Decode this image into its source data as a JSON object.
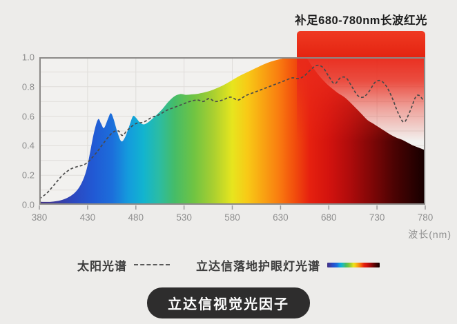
{
  "chart": {
    "title": "补足680-780nm长波红光",
    "xlabel": "波长(nm)"
  },
  "legend": {
    "solar_label": "太阳光谱",
    "lamp_label": "立达信落地护眼灯光谱"
  },
  "footer": {
    "badge_label": "立达信视觉光因子"
  },
  "colors": {
    "page_bg": "#edecea",
    "plot_bg": "#f2f1ef",
    "grid": "#dfddda",
    "border": "#8b8987",
    "tick": "#9a9a9a",
    "dashed_line": "#4a4a4a",
    "banner_red": "#e9291a",
    "badge_bg": "#2e2d2d"
  },
  "chart_data": {
    "type": "area",
    "title": "补足680-780nm长波红光",
    "xlabel": "波长(nm)",
    "ylabel": "",
    "xlim": [
      380,
      780
    ],
    "ylim": [
      0,
      1.0
    ],
    "x_ticks": [
      380,
      430,
      480,
      530,
      580,
      630,
      680,
      730,
      780
    ],
    "y_ticks": [
      0.0,
      0.2,
      0.4,
      0.6,
      0.8,
      1.0
    ],
    "y_tick_labels": [
      "0.0",
      "0.2",
      "0.4",
      "0.6",
      "0.8",
      "1.0"
    ],
    "grid": {
      "h_step": 0.1,
      "v_at_x_ticks": true
    },
    "legend_position": "bottom",
    "highlight": {
      "label": "补足680-780nm长波红光",
      "x_start": 647,
      "x_end": 780,
      "color": "#e9291a",
      "fade_end_value": 0.43
    },
    "series": [
      {
        "name": "立达信落地护眼灯光谱",
        "style": "area",
        "fill": "spectrum-gradient",
        "points": [
          [
            380,
            0.02
          ],
          [
            392,
            0.02
          ],
          [
            402,
            0.03
          ],
          [
            410,
            0.05
          ],
          [
            418,
            0.09
          ],
          [
            424,
            0.15
          ],
          [
            429,
            0.24
          ],
          [
            433,
            0.37
          ],
          [
            437,
            0.5
          ],
          [
            441,
            0.58
          ],
          [
            444,
            0.55
          ],
          [
            447,
            0.52
          ],
          [
            451,
            0.58
          ],
          [
            454,
            0.62
          ],
          [
            457,
            0.58
          ],
          [
            461,
            0.49
          ],
          [
            465,
            0.43
          ],
          [
            469,
            0.46
          ],
          [
            473,
            0.53
          ],
          [
            477,
            0.6
          ],
          [
            480,
            0.59
          ],
          [
            484,
            0.56
          ],
          [
            488,
            0.545
          ],
          [
            493,
            0.56
          ],
          [
            500,
            0.6
          ],
          [
            507,
            0.645
          ],
          [
            514,
            0.7
          ],
          [
            520,
            0.735
          ],
          [
            526,
            0.75
          ],
          [
            532,
            0.745
          ],
          [
            538,
            0.748
          ],
          [
            544,
            0.752
          ],
          [
            550,
            0.76
          ],
          [
            557,
            0.772
          ],
          [
            564,
            0.79
          ],
          [
            572,
            0.815
          ],
          [
            580,
            0.845
          ],
          [
            588,
            0.875
          ],
          [
            596,
            0.9
          ],
          [
            604,
            0.925
          ],
          [
            612,
            0.95
          ],
          [
            620,
            0.97
          ],
          [
            628,
            0.985
          ],
          [
            636,
            0.995
          ],
          [
            642,
            1.0
          ],
          [
            649,
            1.0
          ],
          [
            656,
            1.0
          ],
          [
            663,
            0.935
          ],
          [
            670,
            0.875
          ],
          [
            677,
            0.825
          ],
          [
            684,
            0.785
          ],
          [
            690,
            0.755
          ],
          [
            696,
            0.73
          ],
          [
            702,
            0.695
          ],
          [
            708,
            0.655
          ],
          [
            714,
            0.615
          ],
          [
            720,
            0.575
          ],
          [
            726,
            0.55
          ],
          [
            732,
            0.525
          ],
          [
            738,
            0.5
          ],
          [
            744,
            0.475
          ],
          [
            750,
            0.455
          ],
          [
            756,
            0.44
          ],
          [
            762,
            0.42
          ],
          [
            768,
            0.4
          ],
          [
            774,
            0.385
          ],
          [
            780,
            0.37
          ]
        ]
      },
      {
        "name": "太阳光谱",
        "style": "dashed-line",
        "color": "#4a4a4a",
        "points": [
          [
            380,
            0.04
          ],
          [
            388,
            0.08
          ],
          [
            396,
            0.14
          ],
          [
            404,
            0.2
          ],
          [
            412,
            0.24
          ],
          [
            420,
            0.26
          ],
          [
            426,
            0.27
          ],
          [
            432,
            0.3
          ],
          [
            440,
            0.36
          ],
          [
            448,
            0.43
          ],
          [
            456,
            0.49
          ],
          [
            462,
            0.5
          ],
          [
            466,
            0.47
          ],
          [
            472,
            0.51
          ],
          [
            480,
            0.55
          ],
          [
            488,
            0.56
          ],
          [
            496,
            0.59
          ],
          [
            504,
            0.61
          ],
          [
            512,
            0.64
          ],
          [
            520,
            0.66
          ],
          [
            528,
            0.68
          ],
          [
            536,
            0.7
          ],
          [
            544,
            0.71
          ],
          [
            550,
            0.7
          ],
          [
            556,
            0.72
          ],
          [
            562,
            0.7
          ],
          [
            570,
            0.71
          ],
          [
            578,
            0.73
          ],
          [
            586,
            0.71
          ],
          [
            594,
            0.74
          ],
          [
            602,
            0.76
          ],
          [
            610,
            0.78
          ],
          [
            618,
            0.8
          ],
          [
            626,
            0.82
          ],
          [
            634,
            0.84
          ],
          [
            642,
            0.86
          ],
          [
            648,
            0.855
          ],
          [
            654,
            0.87
          ],
          [
            662,
            0.92
          ],
          [
            668,
            0.945
          ],
          [
            674,
            0.93
          ],
          [
            680,
            0.87
          ],
          [
            686,
            0.82
          ],
          [
            692,
            0.86
          ],
          [
            698,
            0.86
          ],
          [
            704,
            0.8
          ],
          [
            710,
            0.74
          ],
          [
            716,
            0.73
          ],
          [
            722,
            0.77
          ],
          [
            728,
            0.83
          ],
          [
            734,
            0.84
          ],
          [
            740,
            0.8
          ],
          [
            746,
            0.72
          ],
          [
            752,
            0.62
          ],
          [
            758,
            0.56
          ],
          [
            764,
            0.63
          ],
          [
            770,
            0.73
          ],
          [
            774,
            0.74
          ],
          [
            778,
            0.71
          ],
          [
            780,
            0.72
          ]
        ]
      }
    ],
    "spectrum_gradient": [
      {
        "offset": 0.0,
        "color": "#453384"
      },
      {
        "offset": 0.04,
        "color": "#3c3a9c"
      },
      {
        "offset": 0.09,
        "color": "#2c48c0"
      },
      {
        "offset": 0.14,
        "color": "#2159d4"
      },
      {
        "offset": 0.19,
        "color": "#1c6fdb"
      },
      {
        "offset": 0.23,
        "color": "#149bdd"
      },
      {
        "offset": 0.27,
        "color": "#12b4cf"
      },
      {
        "offset": 0.31,
        "color": "#2bbca4"
      },
      {
        "offset": 0.35,
        "color": "#45bc68"
      },
      {
        "offset": 0.4,
        "color": "#6fc443"
      },
      {
        "offset": 0.45,
        "color": "#a8cf30"
      },
      {
        "offset": 0.5,
        "color": "#e7e51e"
      },
      {
        "offset": 0.54,
        "color": "#f8c916"
      },
      {
        "offset": 0.58,
        "color": "#f9a312"
      },
      {
        "offset": 0.62,
        "color": "#f97d10"
      },
      {
        "offset": 0.66,
        "color": "#f24f0d"
      },
      {
        "offset": 0.7,
        "color": "#e6210f"
      },
      {
        "offset": 0.75,
        "color": "#d3130e"
      },
      {
        "offset": 0.8,
        "color": "#b20c0c"
      },
      {
        "offset": 0.86,
        "color": "#800707"
      },
      {
        "offset": 0.92,
        "color": "#4b0303"
      },
      {
        "offset": 1.0,
        "color": "#150000"
      }
    ]
  }
}
